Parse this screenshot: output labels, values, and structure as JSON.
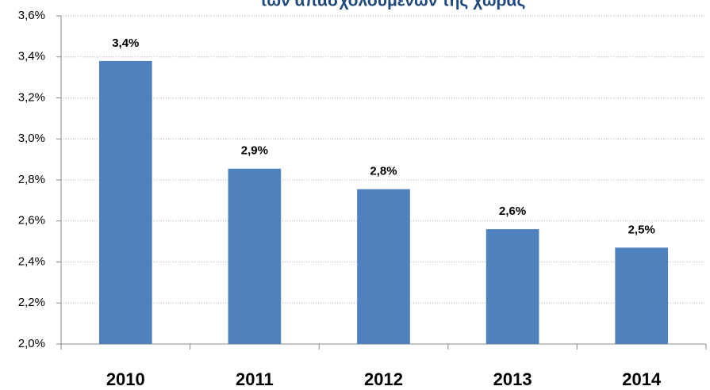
{
  "chart_data": {
    "type": "bar",
    "title": "των απασχολουμένων της χώρας",
    "categories": [
      "2010",
      "2011",
      "2012",
      "2013",
      "2014"
    ],
    "values": [
      3.38,
      2.855,
      2.755,
      2.56,
      2.47
    ],
    "value_labels": [
      "3,4%",
      "2,9%",
      "2,8%",
      "2,6%",
      "2,5%"
    ],
    "color": "#4f81bd",
    "ylim": [
      2.0,
      3.6
    ],
    "yticks": [
      {
        "value": 2.0,
        "label": "2,0%"
      },
      {
        "value": 2.2,
        "label": "2,2%"
      },
      {
        "value": 2.4,
        "label": "2,4%"
      },
      {
        "value": 2.6,
        "label": "2,6%"
      },
      {
        "value": 2.8,
        "label": "2,8%"
      },
      {
        "value": 3.0,
        "label": "3,0%"
      },
      {
        "value": 3.2,
        "label": "3,2%"
      },
      {
        "value": 3.4,
        "label": "3,4%"
      },
      {
        "value": 3.6,
        "label": "3,6%"
      }
    ],
    "grid": true
  }
}
